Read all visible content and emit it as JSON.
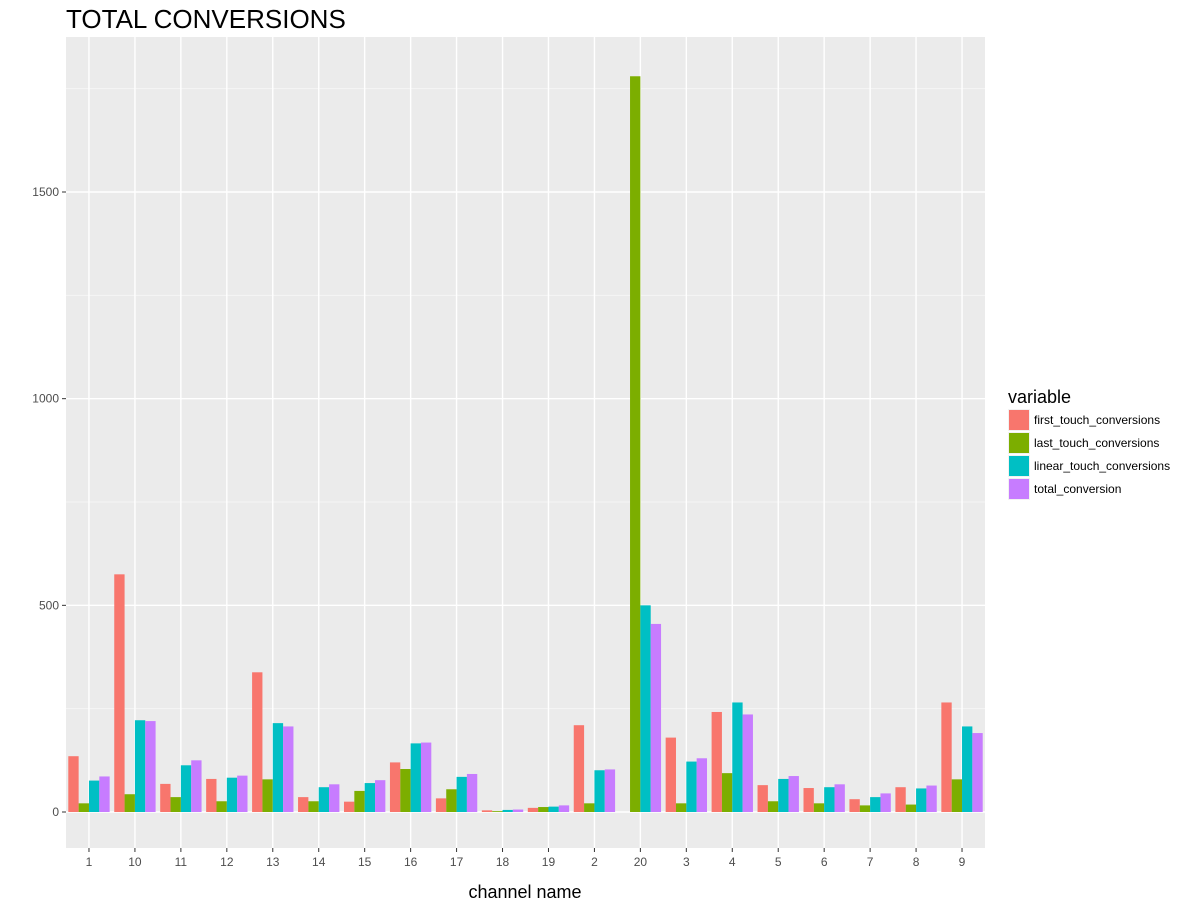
{
  "chart_data": {
    "type": "bar",
    "title": "TOTAL CONVERSIONS",
    "xlabel": "channel  name",
    "ylabel": "",
    "categories": [
      "1",
      "10",
      "11",
      "12",
      "13",
      "14",
      "15",
      "16",
      "17",
      "18",
      "19",
      "2",
      "20",
      "3",
      "4",
      "5",
      "6",
      "7",
      "8",
      "9"
    ],
    "yticks": [
      0,
      500,
      1000,
      1500
    ],
    "ylim": [
      -90,
      1870
    ],
    "grid": true,
    "legend": {
      "title": "variable",
      "position": "right"
    },
    "series": [
      {
        "name": "first_touch_conversions",
        "color": "#F8766D",
        "values": [
          135,
          575,
          68,
          80,
          338,
          36,
          25,
          120,
          33,
          4,
          10,
          210,
          0,
          180,
          242,
          65,
          58,
          31,
          60,
          265
        ]
      },
      {
        "name": "last_touch_conversions",
        "color": "#7CAE00",
        "values": [
          21,
          43,
          36,
          26,
          79,
          26,
          51,
          104,
          55,
          2,
          12,
          21,
          1780,
          21,
          94,
          26,
          21,
          16,
          18,
          79
        ]
      },
      {
        "name": "linear_touch_conversions",
        "color": "#00BFC4",
        "values": [
          76,
          222,
          113,
          83,
          215,
          60,
          70,
          166,
          85,
          5,
          13,
          101,
          500,
          122,
          265,
          80,
          60,
          36,
          57,
          207
        ]
      },
      {
        "name": "total_conversion",
        "color": "#C77CFF",
        "values": [
          86,
          220,
          125,
          88,
          207,
          67,
          77,
          168,
          92,
          6,
          16,
          103,
          455,
          130,
          236,
          87,
          67,
          45,
          64,
          191
        ]
      }
    ]
  }
}
